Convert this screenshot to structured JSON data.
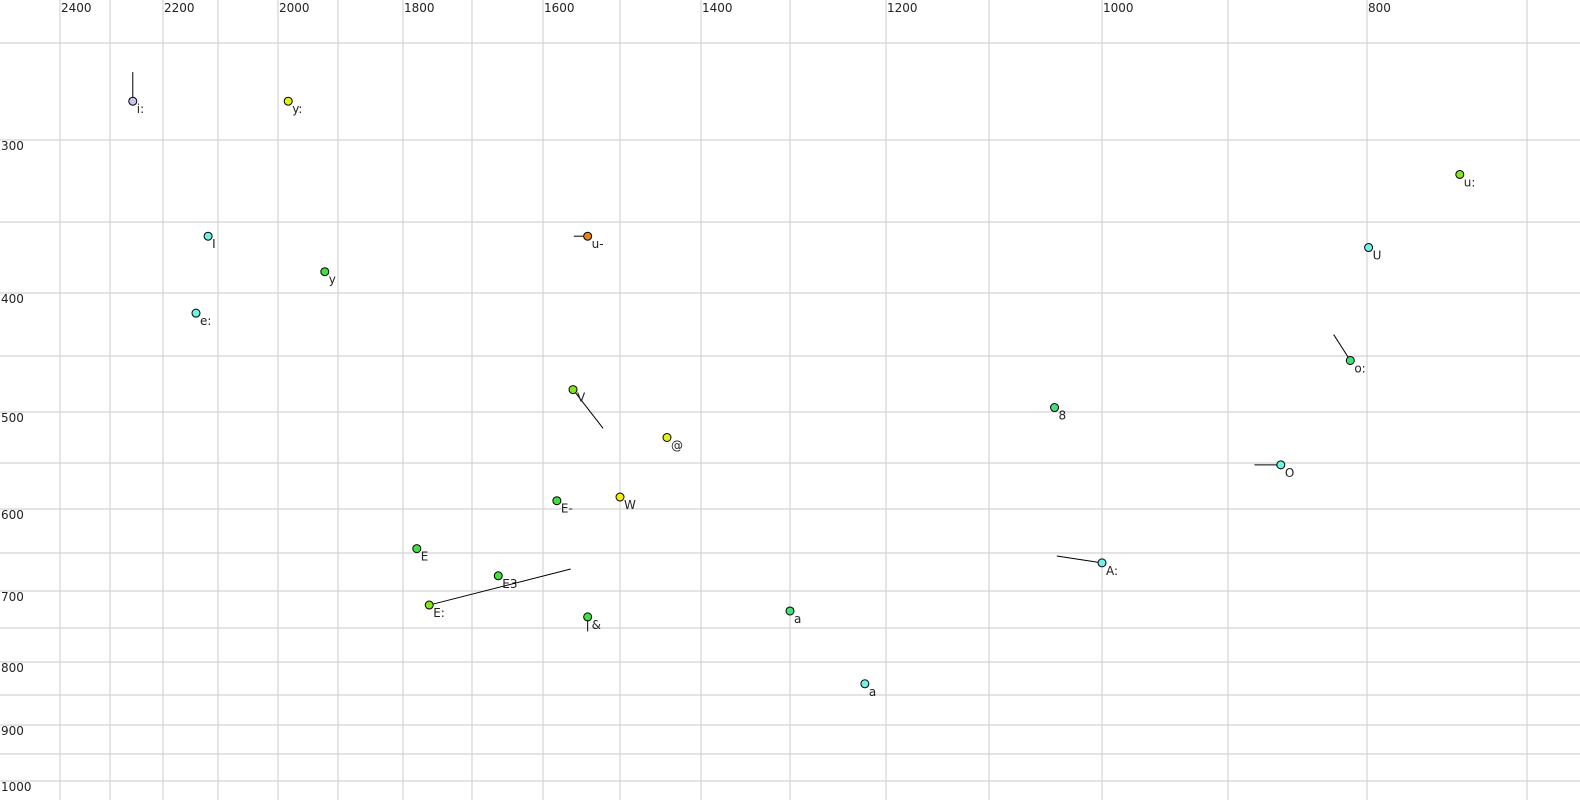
{
  "chart_data": {
    "type": "scatter",
    "title": "",
    "xlabel": "",
    "ylabel": "",
    "x_axis": {
      "reversed": true,
      "position": "top",
      "tick_labels": [
        "2400",
        "2200",
        "2000",
        "1800",
        "1600",
        "1400",
        "1200",
        "1000",
        "800"
      ],
      "range": [
        2450,
        580
      ]
    },
    "y_axis": {
      "reversed": false,
      "position": "left",
      "tick_labels": [
        "300",
        "400",
        "500",
        "600",
        "700",
        "800",
        "900",
        "1000"
      ],
      "range": [
        250,
        1000
      ]
    },
    "grid": true,
    "points": [
      {
        "label": "i:",
        "f2": 2257,
        "f1": 280,
        "color": "#cbc3f2",
        "trajectory_end": [
          2257,
          265
        ]
      },
      {
        "label": "y:",
        "f2": 1983,
        "f1": 280,
        "color": "#e2f216"
      },
      {
        "label": "I",
        "f2": 2118,
        "f1": 360,
        "color": "#6ff2e2"
      },
      {
        "label": "y",
        "f2": 1922,
        "f1": 385,
        "color": "#3fe03f"
      },
      {
        "label": "e:",
        "f2": 2140,
        "f1": 416,
        "color": "#6ff2e2"
      },
      {
        "label": "u-",
        "f2": 1542,
        "f1": 360,
        "color": "#e58418",
        "trajectory_end": [
          1560,
          360
        ]
      },
      {
        "label": "u:",
        "f2": 742,
        "f1": 321,
        "color": "#86e41c"
      },
      {
        "label": "U",
        "f2": 799,
        "f1": 368,
        "color": "#6ff2e2"
      },
      {
        "label": "o:",
        "f2": 812,
        "f1": 454,
        "color": "#42e07a",
        "trajectory_end": [
          824,
          433
        ]
      },
      {
        "label": "8",
        "f2": 1042,
        "f1": 496,
        "color": "#42e07a"
      },
      {
        "label": "V",
        "f2": 1561,
        "f1": 480,
        "color": "#86e41c",
        "trajectory_end": [
          1522,
          516
        ]
      },
      {
        "label": "@",
        "f2": 1442,
        "f1": 525,
        "color": "#e2f216"
      },
      {
        "label": "O",
        "f2": 862,
        "f1": 552,
        "color": "#6ff2e2",
        "trajectory_end": [
          881,
          552
        ]
      },
      {
        "label": "E-",
        "f2": 1582,
        "f1": 591,
        "color": "#3fe03f"
      },
      {
        "label": "W",
        "f2": 1500,
        "f1": 587,
        "color": "#f5f000"
      },
      {
        "label": "E",
        "f2": 1780,
        "f1": 645,
        "color": "#3fe03f"
      },
      {
        "label": "E3",
        "f2": 1663,
        "f1": 680,
        "color": "#3fe03f"
      },
      {
        "label": "E:",
        "f2": 1762,
        "f1": 719,
        "color": "#86e41c",
        "trajectory_end": [
          1564,
          671
        ]
      },
      {
        "label": "&",
        "f2": 1542,
        "f1": 735,
        "color": "#3fe03f",
        "trajectory_end": [
          1542,
          755
        ]
      },
      {
        "label": "a",
        "f2": 1300,
        "f1": 727,
        "color": "#42e07a",
        "label_color": "#666688"
      },
      {
        "label": "A:",
        "f2": 1000,
        "f1": 663,
        "color": "#6ff2e2",
        "trajectory_end": [
          1040,
          654
        ]
      },
      {
        "label": "a",
        "f2": 1222,
        "f1": 833,
        "color": "#6ff2e2"
      }
    ]
  }
}
